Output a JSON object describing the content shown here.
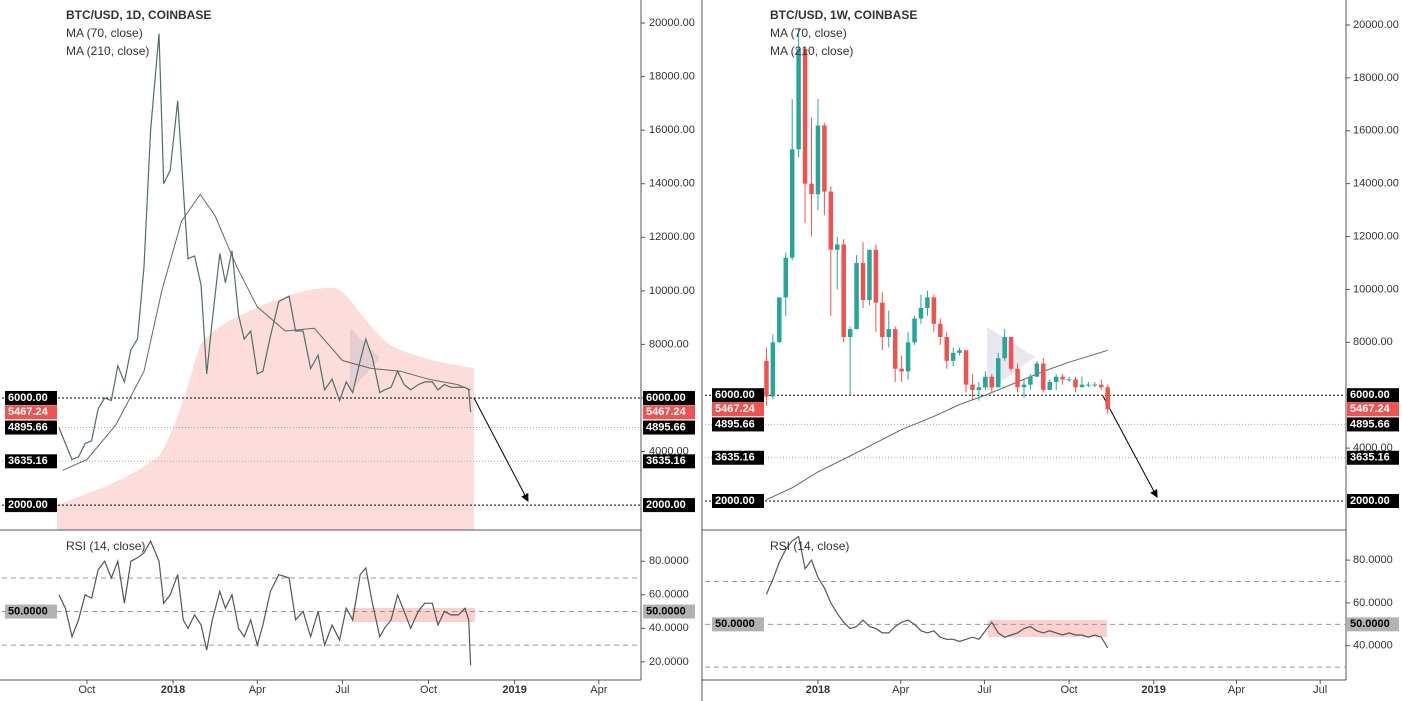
{
  "chart_data": [
    {
      "type": "line",
      "title": "BTC/USD, 1D, COINBASE",
      "indicators": [
        "MA (70, close)",
        "MA (210, close)"
      ],
      "color": "#4f6f6b",
      "x": [
        "2017-09-01",
        "2017-09-08",
        "2017-09-15",
        "2017-09-22",
        "2017-09-29",
        "2017-10-06",
        "2017-10-13",
        "2017-10-20",
        "2017-10-27",
        "2017-11-03",
        "2017-11-10",
        "2017-11-17",
        "2017-11-24",
        "2017-12-01",
        "2017-12-08",
        "2017-12-17",
        "2017-12-22",
        "2017-12-29",
        "2018-01-06",
        "2018-01-12",
        "2018-01-17",
        "2018-01-24",
        "2018-01-31",
        "2018-02-06",
        "2018-02-12",
        "2018-02-20",
        "2018-02-26",
        "2018-03-05",
        "2018-03-12",
        "2018-03-18",
        "2018-03-25",
        "2018-04-01",
        "2018-04-07",
        "2018-04-15",
        "2018-04-24",
        "2018-05-05",
        "2018-05-12",
        "2018-05-20",
        "2018-05-28",
        "2018-06-05",
        "2018-06-12",
        "2018-06-20",
        "2018-06-28",
        "2018-07-05",
        "2018-07-12",
        "2018-07-20",
        "2018-07-26",
        "2018-08-02",
        "2018-08-10",
        "2018-08-15",
        "2018-08-22",
        "2018-08-29",
        "2018-09-05",
        "2018-09-12",
        "2018-09-20",
        "2018-09-27",
        "2018-10-05",
        "2018-10-11",
        "2018-10-18",
        "2018-10-25",
        "2018-11-02",
        "2018-11-09",
        "2018-11-13",
        "2018-11-15"
      ],
      "values": [
        4900,
        4300,
        3700,
        3800,
        4300,
        4400,
        5600,
        6000,
        5900,
        7200,
        6600,
        7800,
        8200,
        10900,
        16000,
        19600,
        14000,
        14500,
        17100,
        13800,
        11200,
        11300,
        10200,
        6900,
        8900,
        11400,
        10300,
        11500,
        9100,
        8200,
        8500,
        6900,
        7000,
        8300,
        9600,
        9800,
        8500,
        8500,
        7100,
        7600,
        6300,
        6700,
        5900,
        6600,
        6200,
        7400,
        8200,
        7500,
        6200,
        6300,
        6400,
        7000,
        6500,
        6300,
        6500,
        6600,
        6600,
        6300,
        6500,
        6400,
        6400,
        6400,
        6300,
        5467.24
      ],
      "ma": {
        "color": "#666666",
        "x": [
          "2017-09-05",
          "2017-10-01",
          "2017-11-01",
          "2017-12-01",
          "2017-12-20",
          "2018-01-10",
          "2018-01-30",
          "2018-02-15",
          "2018-03-10",
          "2018-04-01",
          "2018-05-01",
          "2018-06-01",
          "2018-07-01",
          "2018-08-01",
          "2018-09-01",
          "2018-10-01",
          "2018-11-01",
          "2018-11-15"
        ],
        "values": [
          3300,
          3700,
          5000,
          7000,
          10000,
          12600,
          13600,
          12800,
          10900,
          9400,
          8500,
          8600,
          7400,
          7100,
          7000,
          6700,
          6500,
          6300
        ]
      },
      "levels": [
        {
          "value": 6000,
          "label": "6000.00",
          "style": "dotted",
          "label_color": "#000000"
        },
        {
          "value": 5467.24,
          "label": "5467.24",
          "style": "none",
          "label_color": "#ef5350"
        },
        {
          "value": 4895.66,
          "label": "4895.66",
          "style": "faint",
          "label_color": "#000000"
        },
        {
          "value": 3635.16,
          "label": "3635.16",
          "style": "faint",
          "label_color": "#000000"
        },
        {
          "value": 2000,
          "label": "2000.00",
          "style": "dotted",
          "label_color": "#000000"
        }
      ],
      "xlim": [
        "2017-08-30",
        "2019-05-15"
      ],
      "ylim": [
        1070,
        20860
      ],
      "yticks": [
        {
          "value": 4000,
          "label": "4000.00"
        },
        {
          "value": 6000,
          "label": "6000.00"
        },
        {
          "value": 8000,
          "label": "8000.00"
        },
        {
          "value": 10000,
          "label": "10000.00"
        },
        {
          "value": 12000,
          "label": "12000.00"
        },
        {
          "value": 14000,
          "label": "14000.00"
        },
        {
          "value": 16000,
          "label": "16000.00"
        },
        {
          "value": 18000,
          "label": "18000.00"
        },
        {
          "value": 20000,
          "label": "20000.00"
        }
      ]
    },
    {
      "type": "line",
      "title": "RSI (14, close)",
      "color": "#555555",
      "x": [
        "2017-09-01",
        "2017-09-08",
        "2017-09-15",
        "2017-09-22",
        "2017-09-29",
        "2017-10-06",
        "2017-10-13",
        "2017-10-20",
        "2017-10-27",
        "2017-11-03",
        "2017-11-10",
        "2017-11-17",
        "2017-11-24",
        "2017-12-01",
        "2017-12-08",
        "2017-12-17",
        "2017-12-22",
        "2017-12-29",
        "2018-01-06",
        "2018-01-12",
        "2018-01-17",
        "2018-01-24",
        "2018-01-31",
        "2018-02-06",
        "2018-02-12",
        "2018-02-20",
        "2018-02-26",
        "2018-03-05",
        "2018-03-12",
        "2018-03-18",
        "2018-03-25",
        "2018-04-01",
        "2018-04-07",
        "2018-04-15",
        "2018-04-24",
        "2018-05-05",
        "2018-05-12",
        "2018-05-20",
        "2018-05-28",
        "2018-06-05",
        "2018-06-12",
        "2018-06-20",
        "2018-06-28",
        "2018-07-05",
        "2018-07-12",
        "2018-07-20",
        "2018-07-26",
        "2018-08-02",
        "2018-08-10",
        "2018-08-15",
        "2018-08-22",
        "2018-08-29",
        "2018-09-05",
        "2018-09-12",
        "2018-09-20",
        "2018-09-27",
        "2018-10-05",
        "2018-10-11",
        "2018-10-18",
        "2018-10-25",
        "2018-11-02",
        "2018-11-09",
        "2018-11-13",
        "2018-11-15"
      ],
      "values": [
        60,
        52,
        35,
        45,
        60,
        58,
        75,
        80,
        70,
        80,
        55,
        80,
        82,
        85,
        92,
        80,
        55,
        60,
        72,
        45,
        40,
        48,
        42,
        27,
        45,
        62,
        52,
        60,
        40,
        35,
        45,
        30,
        42,
        62,
        72,
        70,
        45,
        50,
        35,
        50,
        30,
        42,
        33,
        52,
        45,
        72,
        76,
        55,
        35,
        40,
        45,
        60,
        50,
        40,
        50,
        55,
        55,
        42,
        50,
        48,
        48,
        52,
        45,
        18
      ],
      "guides": [
        70,
        50,
        30
      ],
      "levels": [
        {
          "value": 50,
          "label": "50.0000",
          "style": "none",
          "label_color": "#b2b2b2"
        }
      ],
      "xlim": [
        "2017-08-30",
        "2019-05-15"
      ],
      "ylim": [
        9.2,
        98
      ],
      "yticks": [
        {
          "value": 20,
          "label": "20.0000"
        },
        {
          "value": 40,
          "label": "40.0000"
        },
        {
          "value": 60,
          "label": "60.0000"
        },
        {
          "value": 80,
          "label": "80.0000"
        }
      ],
      "xticks": [
        {
          "value": "2017-10-01",
          "label": "Oct"
        },
        {
          "value": "2018-01-01",
          "label": "2018"
        },
        {
          "value": "2018-04-01",
          "label": "Apr"
        },
        {
          "value": "2018-07-01",
          "label": "Jul"
        },
        {
          "value": "2018-10-01",
          "label": "Oct"
        },
        {
          "value": "2019-01-01",
          "label": "2019"
        },
        {
          "value": "2019-04-01",
          "label": "Apr"
        }
      ]
    },
    {
      "type": "candlestick",
      "title": "BTC/USD, 1W, COINBASE",
      "indicators": [
        "MA (70, close)",
        "MA (210, close)"
      ],
      "up_color": "#26a69a",
      "down_color": "#ef5350",
      "x": [
        "2017-11-06",
        "2017-11-13",
        "2017-11-20",
        "2017-11-27",
        "2017-12-04",
        "2017-12-11",
        "2017-12-18",
        "2017-12-25",
        "2018-01-01",
        "2018-01-08",
        "2018-01-15",
        "2018-01-22",
        "2018-01-29",
        "2018-02-05",
        "2018-02-12",
        "2018-02-19",
        "2018-02-26",
        "2018-03-05",
        "2018-03-12",
        "2018-03-19",
        "2018-03-26",
        "2018-04-02",
        "2018-04-09",
        "2018-04-16",
        "2018-04-23",
        "2018-04-30",
        "2018-05-07",
        "2018-05-14",
        "2018-05-21",
        "2018-05-28",
        "2018-06-04",
        "2018-06-11",
        "2018-06-18",
        "2018-06-25",
        "2018-07-02",
        "2018-07-09",
        "2018-07-16",
        "2018-07-23",
        "2018-07-30",
        "2018-08-06",
        "2018-08-13",
        "2018-08-20",
        "2018-08-27",
        "2018-09-03",
        "2018-09-10",
        "2018-09-17",
        "2018-09-24",
        "2018-10-01",
        "2018-10-08",
        "2018-10-15",
        "2018-10-22",
        "2018-10-29",
        "2018-11-05",
        "2018-11-12"
      ],
      "open": [
        7300,
        5950,
        8000,
        9700,
        11200,
        15300,
        19100,
        14000,
        13600,
        16200,
        13700,
        11500,
        11700,
        8200,
        8500,
        11000,
        9600,
        11500,
        9500,
        8200,
        8500,
        7000,
        6900,
        8000,
        8900,
        9300,
        9700,
        8700,
        8200,
        7300,
        7600,
        7700,
        6400,
        6200,
        6300,
        6700,
        6300,
        7400,
        8200,
        7000,
        6300,
        6400,
        6700,
        7200,
        6200,
        6500,
        6700,
        6600,
        6600,
        6300,
        6400,
        6400,
        6400,
        6300
      ],
      "high": [
        7800,
        8300,
        9700,
        11400,
        17200,
        19900,
        19200,
        16500,
        17200,
        16300,
        13900,
        12000,
        11900,
        8600,
        11300,
        11800,
        11500,
        11700,
        9900,
        9200,
        8600,
        7500,
        8400,
        9000,
        9800,
        9950,
        9800,
        8900,
        8400,
        7800,
        7800,
        7700,
        6800,
        6500,
        6900,
        6800,
        7600,
        8500,
        8200,
        7200,
        6600,
        6800,
        7300,
        7400,
        6600,
        6800,
        6800,
        6700,
        6700,
        6700,
        6500,
        6500,
        6600,
        6400
      ],
      "low": [
        5600,
        5850,
        8000,
        9000,
        11100,
        15000,
        12500,
        12000,
        13000,
        12800,
        9000,
        10000,
        8000,
        6000,
        8500,
        9300,
        9400,
        8400,
        7700,
        7800,
        6500,
        6500,
        6600,
        7900,
        8700,
        9000,
        8400,
        7900,
        7000,
        7100,
        7500,
        6100,
        5800,
        5800,
        6200,
        6100,
        6300,
        7300,
        6900,
        6100,
        5900,
        6200,
        6700,
        6100,
        6200,
        6200,
        6400,
        6500,
        6100,
        6300,
        6300,
        6300,
        6200,
        5300
      ],
      "close": [
        5950,
        8000,
        9700,
        11200,
        15300,
        19100,
        14000,
        13600,
        16200,
        13700,
        11500,
        11700,
        8200,
        8500,
        11000,
        9600,
        11500,
        9500,
        8200,
        8500,
        7000,
        6900,
        8000,
        8900,
        9300,
        9700,
        8700,
        8200,
        7300,
        7600,
        7700,
        6400,
        6200,
        6300,
        6700,
        6300,
        7400,
        8200,
        7000,
        6300,
        6400,
        6700,
        7200,
        6200,
        6500,
        6700,
        6600,
        6600,
        6300,
        6400,
        6400,
        6400,
        6300,
        5467.24
      ],
      "ma": {
        "color": "#666666",
        "x": [
          "2017-11-06",
          "2017-12-04",
          "2018-01-01",
          "2018-02-05",
          "2018-03-05",
          "2018-04-02",
          "2018-05-07",
          "2018-06-04",
          "2018-07-02",
          "2018-08-06",
          "2018-09-03",
          "2018-10-01",
          "2018-11-12"
        ],
        "values": [
          2050,
          2500,
          3100,
          3700,
          4200,
          4700,
          5200,
          5650,
          6000,
          6500,
          6900,
          7250,
          7700
        ]
      },
      "levels": [
        {
          "value": 6000,
          "label": "6000.00",
          "style": "dotted",
          "label_color": "#000000"
        },
        {
          "value": 5467.24,
          "label": "5467.24",
          "style": "none",
          "label_color": "#ef5350"
        },
        {
          "value": 4895.66,
          "label": "4895.66",
          "style": "faint",
          "label_color": "#000000"
        },
        {
          "value": 3635.16,
          "label": "3635.16",
          "style": "faint",
          "label_color": "#000000"
        },
        {
          "value": 2000,
          "label": "2000.00",
          "style": "dotted",
          "label_color": "#000000"
        }
      ],
      "xlim": [
        "2017-10-30",
        "2019-07-28"
      ],
      "ylim": [
        903,
        20945
      ],
      "yticks": [
        {
          "value": 4000,
          "label": "4000.00"
        },
        {
          "value": 6000,
          "label": "6000.00"
        },
        {
          "value": 8000,
          "label": "8000.00"
        },
        {
          "value": 10000,
          "label": "10000.00"
        },
        {
          "value": 12000,
          "label": "12000.00"
        },
        {
          "value": 14000,
          "label": "14000.00"
        },
        {
          "value": 16000,
          "label": "16000.00"
        },
        {
          "value": 18000,
          "label": "18000.00"
        },
        {
          "value": 20000,
          "label": "20000.00"
        }
      ]
    },
    {
      "type": "line",
      "title": "RSI (14, close)",
      "color": "#555555",
      "x": [
        "2017-11-06",
        "2017-11-13",
        "2017-11-20",
        "2017-11-27",
        "2017-12-04",
        "2017-12-11",
        "2017-12-18",
        "2017-12-25",
        "2018-01-01",
        "2018-01-08",
        "2018-01-15",
        "2018-01-22",
        "2018-01-29",
        "2018-02-05",
        "2018-02-12",
        "2018-02-19",
        "2018-02-26",
        "2018-03-05",
        "2018-03-12",
        "2018-03-19",
        "2018-03-26",
        "2018-04-02",
        "2018-04-09",
        "2018-04-16",
        "2018-04-23",
        "2018-04-30",
        "2018-05-07",
        "2018-05-14",
        "2018-05-21",
        "2018-05-28",
        "2018-06-04",
        "2018-06-11",
        "2018-06-18",
        "2018-06-25",
        "2018-07-02",
        "2018-07-09",
        "2018-07-16",
        "2018-07-23",
        "2018-07-30",
        "2018-08-06",
        "2018-08-13",
        "2018-08-20",
        "2018-08-27",
        "2018-09-03",
        "2018-09-10",
        "2018-09-17",
        "2018-09-24",
        "2018-10-01",
        "2018-10-08",
        "2018-10-15",
        "2018-10-22",
        "2018-10-29",
        "2018-11-05",
        "2018-11-12"
      ],
      "values": [
        64,
        71,
        79,
        85,
        89,
        91,
        76,
        80,
        72,
        67,
        60,
        55,
        51,
        48,
        49,
        52,
        49,
        48,
        46,
        46,
        49,
        51,
        52,
        50,
        47,
        46,
        47,
        44,
        43,
        43,
        42,
        43,
        44,
        43,
        47,
        51,
        46,
        44,
        45,
        46,
        48,
        49,
        47,
        46,
        47,
        46,
        45,
        46,
        45,
        45,
        44,
        45,
        44,
        39
      ],
      "guides": [
        70,
        50,
        30
      ],
      "levels": [
        {
          "value": 50,
          "label": "50.0000",
          "style": "none",
          "label_color": "#b2b2b2"
        }
      ],
      "xlim": [
        "2017-10-30",
        "2019-07-28"
      ],
      "ylim": [
        24,
        93.6
      ],
      "yticks": [
        {
          "value": 40,
          "label": "40.0000"
        },
        {
          "value": 60,
          "label": "60.0000"
        },
        {
          "value": 80,
          "label": "80.0000"
        }
      ],
      "xticks": [
        {
          "value": "2018-01-01",
          "label": "2018"
        },
        {
          "value": "2018-04-01",
          "label": "Apr"
        },
        {
          "value": "2018-07-01",
          "label": "Jul"
        },
        {
          "value": "2018-10-01",
          "label": "Oct"
        },
        {
          "value": "2019-01-01",
          "label": "2019"
        },
        {
          "value": "2019-04-01",
          "label": "Apr"
        },
        {
          "value": "2019-07-01",
          "label": "Jul"
        }
      ]
    }
  ]
}
